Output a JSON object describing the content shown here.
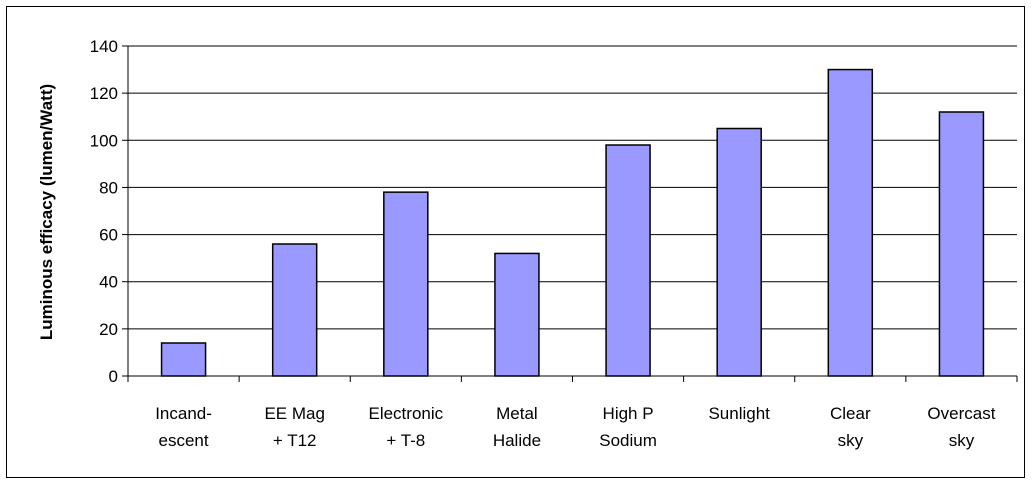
{
  "chart_data": {
    "type": "bar",
    "categories": [
      [
        "Incand-",
        "escent"
      ],
      [
        "EE Mag",
        "+ T12"
      ],
      [
        "Electronic",
        "+ T-8"
      ],
      [
        "Metal",
        "Halide"
      ],
      [
        "High P",
        "Sodium"
      ],
      [
        "Sunlight"
      ],
      [
        "Clear",
        "sky"
      ],
      [
        "Overcast",
        "sky"
      ]
    ],
    "values": [
      14,
      56,
      78,
      52,
      98,
      105,
      130,
      112
    ],
    "ylabel": "Luminous efficacy (lumen/Watt)",
    "xlabel": "",
    "ylim": [
      0,
      140
    ],
    "yticks": [
      0,
      20,
      40,
      60,
      80,
      100,
      120,
      140
    ],
    "grid": true,
    "bar_color": "#9999ff",
    "bar_edge_color": "#000000"
  }
}
